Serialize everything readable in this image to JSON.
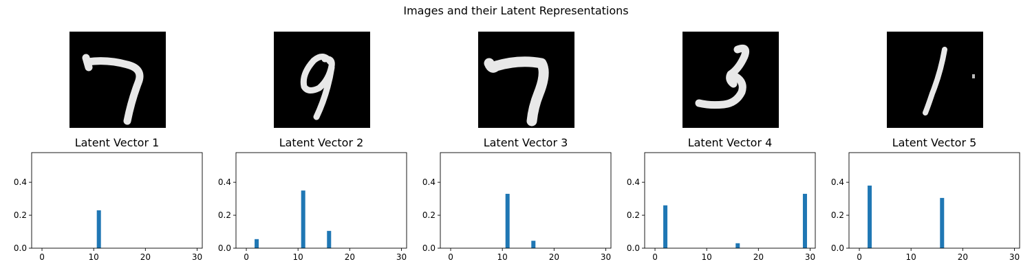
{
  "figure": {
    "suptitle": "Images and their Latent Representations",
    "bar_color": "#1f77b4",
    "image_background": "#000000",
    "stroke_color": "#e8e8e8",
    "images": [
      {
        "digit": "7"
      },
      {
        "digit": "9"
      },
      {
        "digit": "7"
      },
      {
        "digit": "3"
      },
      {
        "digit": "1"
      }
    ]
  },
  "chart_data": [
    {
      "type": "bar",
      "title": "Latent Vector 1",
      "x": [
        11
      ],
      "values": [
        0.23
      ],
      "xlim": [
        -2,
        31
      ],
      "ylim": [
        0,
        0.58
      ],
      "xticks": [
        "0",
        "10",
        "20",
        "30"
      ],
      "yticks": [
        "0.0",
        "0.2",
        "0.4"
      ],
      "grid": false
    },
    {
      "type": "bar",
      "title": "Latent Vector 2",
      "x": [
        2,
        11,
        16
      ],
      "values": [
        0.055,
        0.35,
        0.105
      ],
      "xlim": [
        -2,
        31
      ],
      "ylim": [
        0,
        0.58
      ],
      "xticks": [
        "0",
        "10",
        "20",
        "30"
      ],
      "yticks": [
        "0.0",
        "0.2",
        "0.4"
      ],
      "grid": false
    },
    {
      "type": "bar",
      "title": "Latent Vector 3",
      "x": [
        11,
        16
      ],
      "values": [
        0.33,
        0.045
      ],
      "xlim": [
        -2,
        31
      ],
      "ylim": [
        0,
        0.58
      ],
      "xticks": [
        "0",
        "10",
        "20",
        "30"
      ],
      "yticks": [
        "0.0",
        "0.2",
        "0.4"
      ],
      "grid": false
    },
    {
      "type": "bar",
      "title": "Latent Vector 4",
      "x": [
        2,
        16,
        29
      ],
      "values": [
        0.26,
        0.03,
        0.33
      ],
      "xlim": [
        -2,
        31
      ],
      "ylim": [
        0,
        0.58
      ],
      "xticks": [
        "0",
        "10",
        "20",
        "30"
      ],
      "yticks": [
        "0.0",
        "0.2",
        "0.4"
      ],
      "grid": false
    },
    {
      "type": "bar",
      "title": "Latent Vector 5",
      "x": [
        2,
        16
      ],
      "values": [
        0.38,
        0.305
      ],
      "xlim": [
        -2,
        31
      ],
      "ylim": [
        0,
        0.58
      ],
      "xticks": [
        "0",
        "10",
        "20",
        "30"
      ],
      "yticks": [
        "0.0",
        "0.2",
        "0.4"
      ],
      "grid": false
    }
  ]
}
